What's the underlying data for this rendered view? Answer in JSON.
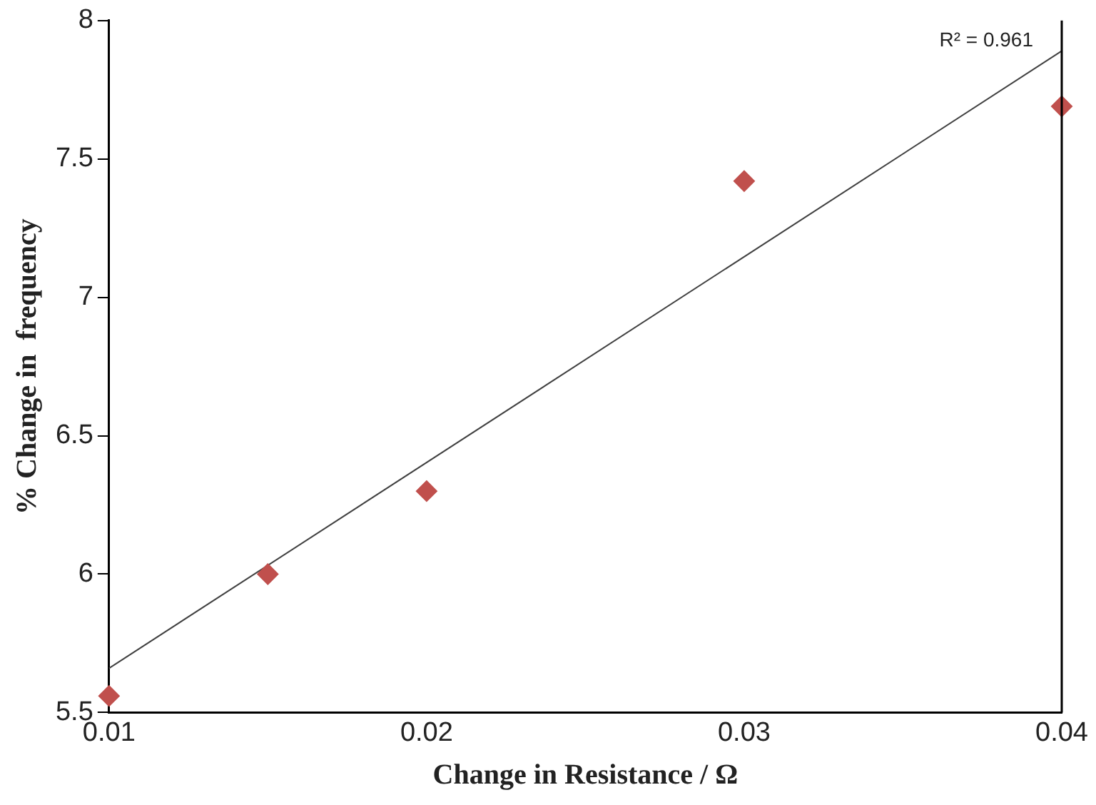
{
  "chart_data": {
    "type": "scatter",
    "xlabel": "Change in Resistance / Ω",
    "ylabel": "% Change in  frequency",
    "x": [
      0.01,
      0.015,
      0.02,
      0.03,
      0.04
    ],
    "series": [
      {
        "type": "scatter",
        "color": "#c0504d",
        "values": [
          5.56,
          6.0,
          6.3,
          7.42,
          7.69
        ],
        "marker": "diamond"
      },
      {
        "type": "line",
        "color": "#404040",
        "x": [
          0.01,
          0.04
        ],
        "values": [
          5.66,
          7.89
        ],
        "marker": "none"
      }
    ],
    "annotations": [
      "R² = 0.961"
    ],
    "xlim": [
      0.01,
      0.04
    ],
    "xticks": [
      0.01,
      0.02,
      0.03,
      0.04
    ],
    "ylim": [
      5.5,
      8
    ],
    "yticks": [
      5.5,
      6,
      6.5,
      7,
      7.5,
      8
    ],
    "grid": false,
    "legend": false
  }
}
